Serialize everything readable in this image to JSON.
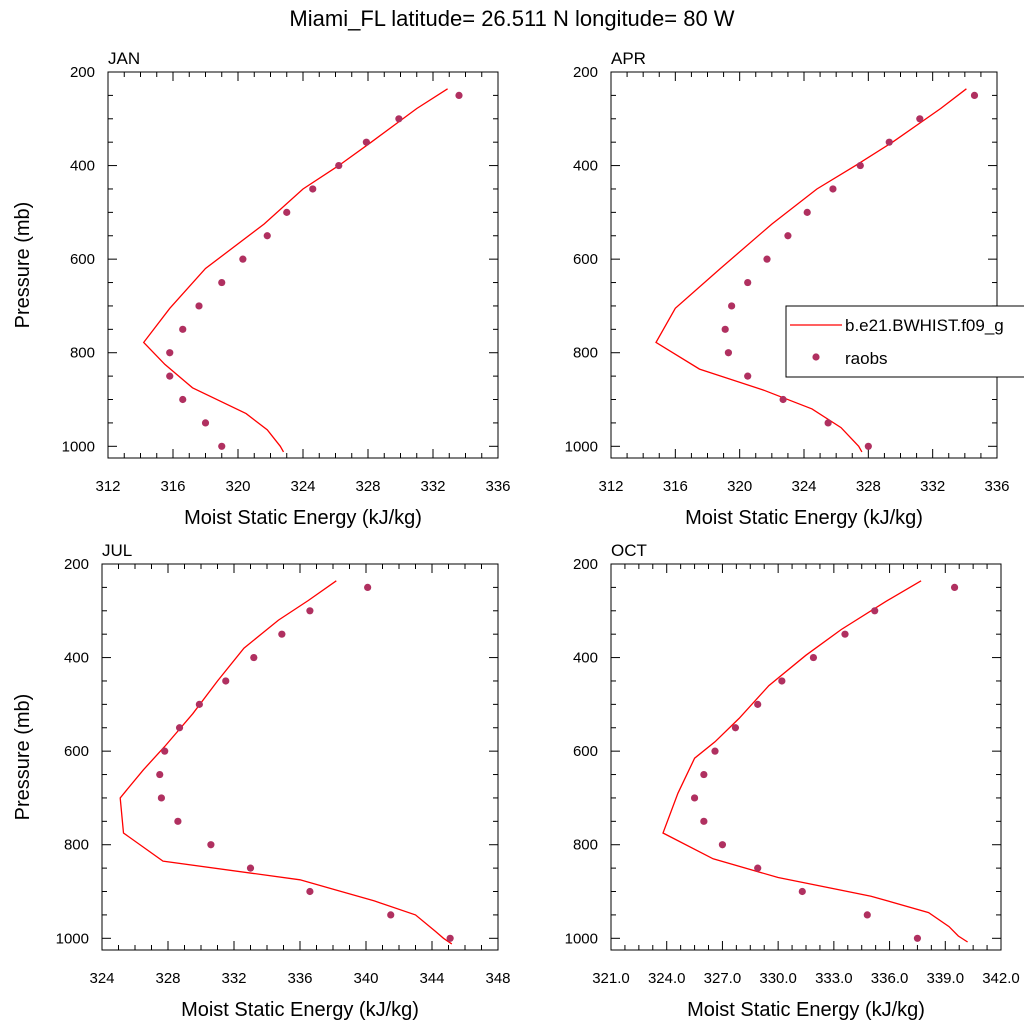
{
  "figure_title": "Miami_FL  latitude= 26.511 N longitude= 80 W",
  "legend": {
    "model_label": "b.e21.BWHIST.f09_g",
    "obs_label": "raobs",
    "colors": {
      "model_line": "#ff0000",
      "obs_marker": "#b03060"
    }
  },
  "chart_data": [
    {
      "type": "line",
      "title": "JAN",
      "xlabel": "Moist Static Energy (kJ/kg)",
      "ylabel": "Pressure (mb)",
      "xlim": [
        312,
        336
      ],
      "ylim": [
        1025,
        200
      ],
      "xticks": [
        "312",
        "316",
        "320",
        "324",
        "328",
        "332",
        "336"
      ],
      "yticks": [
        "200",
        "400",
        "600",
        "800",
        "1000"
      ],
      "series": [
        {
          "kind": "line",
          "x": [
            332.9,
            331.0,
            328.2,
            326.2,
            324.0,
            321.6,
            318.0,
            315.8,
            314.2,
            315.5,
            317.2,
            320.5,
            321.8,
            322.6,
            322.8
          ],
          "y": [
            236,
            278,
            350,
            400,
            450,
            525,
            620,
            705,
            778,
            825,
            875,
            930,
            965,
            1000,
            1012
          ]
        },
        {
          "kind": "scatter",
          "x": [
            333.6,
            329.9,
            327.9,
            326.2,
            324.6,
            323.0,
            321.8,
            320.3,
            319.0,
            317.6,
            316.6,
            315.8,
            315.8,
            316.6,
            318.0,
            319.0
          ],
          "y": [
            250,
            300,
            350,
            400,
            450,
            500,
            550,
            600,
            650,
            700,
            750,
            800,
            850,
            900,
            950,
            1000
          ]
        }
      ]
    },
    {
      "type": "line",
      "title": "APR",
      "xlabel": "Moist Static Energy (kJ/kg)",
      "ylabel": "",
      "xlim": [
        312,
        336
      ],
      "ylim": [
        1025,
        200
      ],
      "xticks": [
        "312",
        "316",
        "320",
        "324",
        "328",
        "332",
        "336"
      ],
      "yticks": [
        "200",
        "400",
        "600",
        "800",
        "1000"
      ],
      "series": [
        {
          "kind": "line",
          "x": [
            334.1,
            332.5,
            329.5,
            327.2,
            324.8,
            322.0,
            318.8,
            316.0,
            314.8,
            317.5,
            321.5,
            324.5,
            326.3,
            327.4,
            327.6
          ],
          "y": [
            236,
            278,
            350,
            400,
            450,
            525,
            620,
            705,
            778,
            835,
            880,
            920,
            960,
            1000,
            1012
          ]
        },
        {
          "kind": "scatter",
          "x": [
            334.6,
            331.2,
            329.3,
            327.5,
            325.8,
            324.2,
            323.0,
            321.7,
            320.5,
            319.5,
            319.1,
            319.3,
            320.5,
            322.7,
            325.5,
            328.0
          ],
          "y": [
            250,
            300,
            350,
            400,
            450,
            500,
            550,
            600,
            650,
            700,
            750,
            800,
            850,
            900,
            950,
            1000
          ]
        }
      ]
    },
    {
      "type": "line",
      "title": "JUL",
      "xlabel": "Moist Static Energy (kJ/kg)",
      "ylabel": "Pressure (mb)",
      "xlim": [
        324,
        348
      ],
      "ylim": [
        1025,
        200
      ],
      "xticks": [
        "324",
        "328",
        "332",
        "336",
        "340",
        "344",
        "348"
      ],
      "yticks": [
        "200",
        "400",
        "600",
        "800",
        "1000"
      ],
      "series": [
        {
          "kind": "line",
          "x": [
            338.2,
            336.5,
            334.7,
            332.6,
            331.0,
            329.5,
            327.8,
            326.5,
            325.1,
            325.3,
            327.7,
            336.0,
            340.5,
            343.0,
            344.2,
            344.7,
            345.2
          ],
          "y": [
            236,
            278,
            320,
            380,
            450,
            520,
            590,
            640,
            700,
            775,
            835,
            875,
            920,
            950,
            985,
            1000,
            1012
          ]
        },
        {
          "kind": "scatter",
          "x": [
            340.1,
            336.6,
            334.9,
            333.2,
            331.5,
            329.9,
            328.7,
            327.8,
            327.5,
            327.6,
            328.6,
            330.6,
            333.0,
            336.6,
            341.5,
            345.1
          ],
          "y": [
            250,
            300,
            350,
            400,
            450,
            500,
            550,
            600,
            650,
            700,
            750,
            800,
            850,
            900,
            950,
            1000
          ]
        }
      ]
    },
    {
      "type": "line",
      "title": "OCT",
      "xlabel": "Moist Static Energy (kJ/kg)",
      "ylabel": "",
      "xlim": [
        321,
        342
      ],
      "ylim": [
        1025,
        200
      ],
      "xticks": [
        "321.0",
        "324.0",
        "327.0",
        "330.0",
        "333.0",
        "336.0",
        "339.0",
        "342.0"
      ],
      "yticks": [
        "200",
        "400",
        "600",
        "800",
        "1000"
      ],
      "series": [
        {
          "kind": "line",
          "x": [
            337.7,
            335.8,
            333.4,
            331.5,
            329.5,
            327.9,
            326.6,
            325.5,
            324.6,
            323.8,
            326.5,
            330.0,
            335.0,
            338.1,
            339.2,
            339.7,
            340.2
          ],
          "y": [
            236,
            280,
            340,
            395,
            460,
            530,
            580,
            615,
            690,
            775,
            830,
            870,
            910,
            945,
            975,
            995,
            1008
          ]
        },
        {
          "kind": "scatter",
          "x": [
            339.5,
            335.2,
            333.6,
            331.9,
            330.2,
            328.9,
            327.7,
            326.6,
            326.0,
            325.5,
            326.0,
            327.0,
            328.9,
            331.3,
            334.8,
            337.5
          ],
          "y": [
            250,
            300,
            350,
            400,
            450,
            500,
            550,
            600,
            650,
            700,
            750,
            800,
            850,
            900,
            950,
            1000
          ]
        }
      ]
    }
  ]
}
